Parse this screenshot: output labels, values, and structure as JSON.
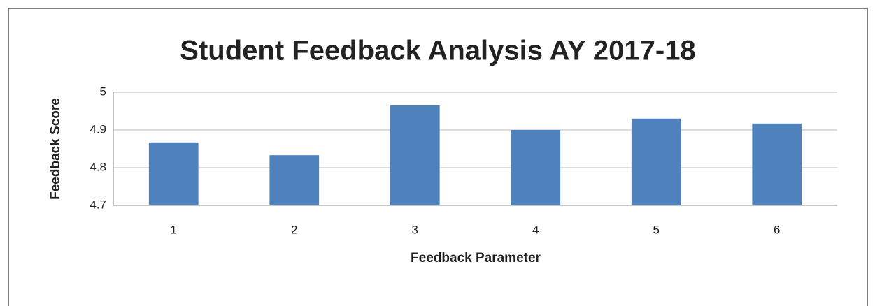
{
  "chart_data": {
    "type": "bar",
    "title": "Student Feedback Analysis AY 2017-18",
    "x_label": "Feedback Parameter",
    "y_label": "Feedback Score",
    "categories": [
      "1",
      "2",
      "3",
      "4",
      "5",
      "6"
    ],
    "values": [
      4.867,
      4.833,
      4.965,
      4.9,
      4.93,
      4.917
    ],
    "color": "#4f81bd",
    "ylim": [
      4.7,
      5
    ],
    "yticks": [
      4.7,
      4.8,
      4.9,
      5
    ],
    "grid": true
  }
}
